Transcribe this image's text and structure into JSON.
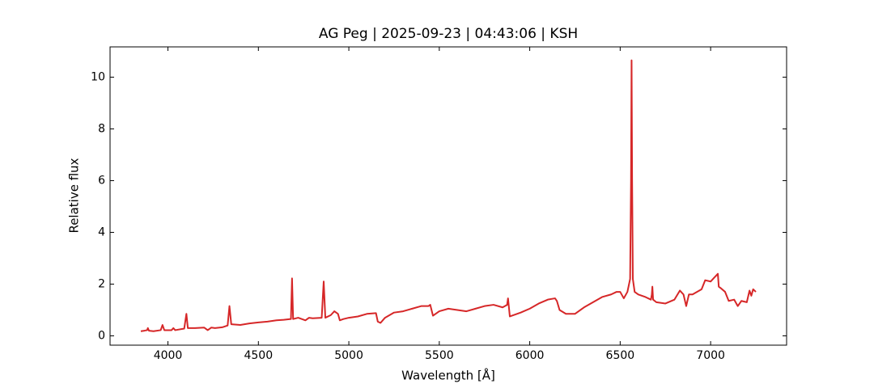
{
  "chart_data": {
    "type": "line",
    "title": "AG Peg | 2025-09-23 | 04:43:06 | KSH",
    "x_label": "Wavelength [Å]",
    "y_label": "Relative flux",
    "xlim": [
      3680,
      7420
    ],
    "ylim": [
      -0.36,
      11.17
    ],
    "xticks": [
      4000,
      4500,
      5000,
      5500,
      6000,
      6500,
      7000
    ],
    "yticks": [
      0,
      2,
      4,
      6,
      8,
      10
    ],
    "color": "#d62728",
    "x": [
      3850,
      3870,
      3885,
      3889,
      3895,
      3920,
      3960,
      3970,
      3980,
      4020,
      4030,
      4040,
      4090,
      4102,
      4110,
      4150,
      4200,
      4220,
      4240,
      4260,
      4300,
      4330,
      4340,
      4350,
      4400,
      4450,
      4500,
      4550,
      4600,
      4640,
      4680,
      4686,
      4692,
      4720,
      4760,
      4780,
      4800,
      4850,
      4861,
      4870,
      4900,
      4920,
      4940,
      4950,
      4970,
      5000,
      5050,
      5100,
      5150,
      5160,
      5175,
      5200,
      5250,
      5300,
      5350,
      5400,
      5440,
      5450,
      5465,
      5500,
      5550,
      5600,
      5650,
      5700,
      5750,
      5800,
      5850,
      5875,
      5880,
      5890,
      5950,
      6000,
      6050,
      6100,
      6140,
      6150,
      6165,
      6200,
      6250,
      6300,
      6350,
      6400,
      6450,
      6480,
      6500,
      6520,
      6540,
      6555,
      6560,
      6563,
      6566,
      6570,
      6580,
      6600,
      6640,
      6670,
      6675,
      6678,
      6682,
      6700,
      6750,
      6800,
      6830,
      6850,
      6865,
      6880,
      6900,
      6950,
      6970,
      7000,
      7020,
      7040,
      7045,
      7055,
      7080,
      7100,
      7130,
      7150,
      7170,
      7200,
      7215,
      7225,
      7235,
      7250
    ],
    "values": [
      0.18,
      0.2,
      0.22,
      0.3,
      0.2,
      0.18,
      0.22,
      0.42,
      0.22,
      0.22,
      0.3,
      0.22,
      0.28,
      0.85,
      0.3,
      0.3,
      0.32,
      0.22,
      0.32,
      0.3,
      0.33,
      0.4,
      1.15,
      0.45,
      0.42,
      0.48,
      0.52,
      0.55,
      0.6,
      0.62,
      0.65,
      2.22,
      0.65,
      0.7,
      0.6,
      0.7,
      0.68,
      0.7,
      2.1,
      0.7,
      0.8,
      0.95,
      0.85,
      0.6,
      0.65,
      0.7,
      0.75,
      0.85,
      0.88,
      0.55,
      0.5,
      0.7,
      0.9,
      0.95,
      1.05,
      1.15,
      1.15,
      1.2,
      0.78,
      0.95,
      1.05,
      1.0,
      0.95,
      1.05,
      1.15,
      1.2,
      1.1,
      1.2,
      1.45,
      0.75,
      0.9,
      1.05,
      1.25,
      1.4,
      1.45,
      1.35,
      1.0,
      0.85,
      0.85,
      1.1,
      1.3,
      1.5,
      1.6,
      1.7,
      1.7,
      1.45,
      1.7,
      2.2,
      6.0,
      10.65,
      6.0,
      2.2,
      1.7,
      1.6,
      1.5,
      1.4,
      1.6,
      1.9,
      1.4,
      1.3,
      1.25,
      1.4,
      1.75,
      1.6,
      1.15,
      1.6,
      1.6,
      1.8,
      2.15,
      2.1,
      2.25,
      2.4,
      1.9,
      1.85,
      1.7,
      1.35,
      1.4,
      1.15,
      1.35,
      1.3,
      1.75,
      1.55,
      1.8,
      1.7
    ]
  }
}
